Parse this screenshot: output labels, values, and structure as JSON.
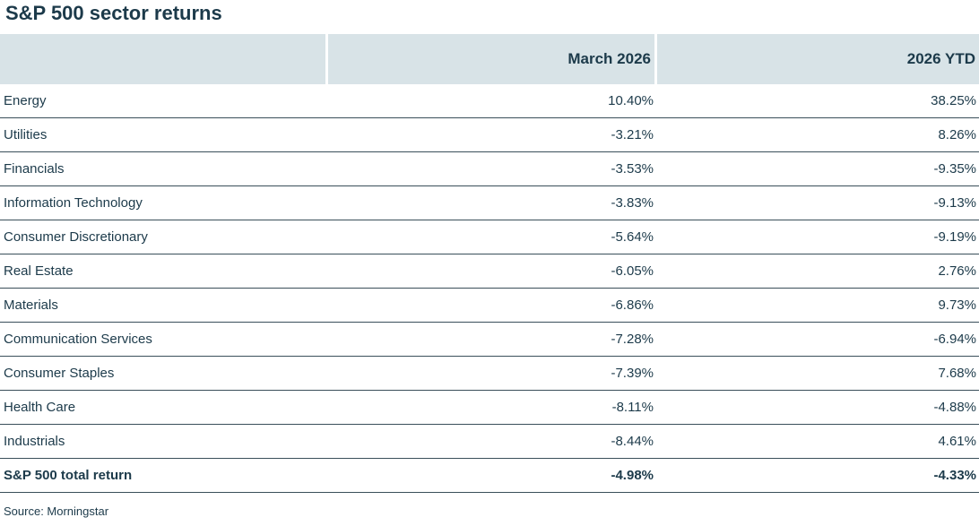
{
  "title": "S&P 500 sector returns",
  "chart_data": {
    "type": "table",
    "columns": [
      "",
      "March 2026",
      "2026 YTD"
    ],
    "rows": [
      {
        "sector": "Energy",
        "march": "10.40%",
        "ytd": "38.25%"
      },
      {
        "sector": "Utilities",
        "march": "-3.21%",
        "ytd": "8.26%"
      },
      {
        "sector": "Financials",
        "march": "-3.53%",
        "ytd": "-9.35%"
      },
      {
        "sector": "Information Technology",
        "march": "-3.83%",
        "ytd": "-9.13%"
      },
      {
        "sector": "Consumer Discretionary",
        "march": "-5.64%",
        "ytd": "-9.19%"
      },
      {
        "sector": "Real Estate",
        "march": "-6.05%",
        "ytd": "2.76%"
      },
      {
        "sector": "Materials",
        "march": "-6.86%",
        "ytd": "9.73%"
      },
      {
        "sector": "Communication Services",
        "march": "-7.28%",
        "ytd": "-6.94%"
      },
      {
        "sector": "Consumer Staples",
        "march": "-7.39%",
        "ytd": "7.68%"
      },
      {
        "sector": "Health Care",
        "march": "-8.11%",
        "ytd": "-4.88%"
      },
      {
        "sector": "Industrials",
        "march": "-8.44%",
        "ytd": "4.61%"
      }
    ],
    "total": {
      "sector": "S&P 500 total return",
      "march": "-4.98%",
      "ytd": "-4.33%"
    }
  },
  "source": "Source: Morningstar",
  "colors": {
    "text": "#1c3a4a",
    "header_bg": "#d8e3e7",
    "rule": "#3a4f5a"
  }
}
